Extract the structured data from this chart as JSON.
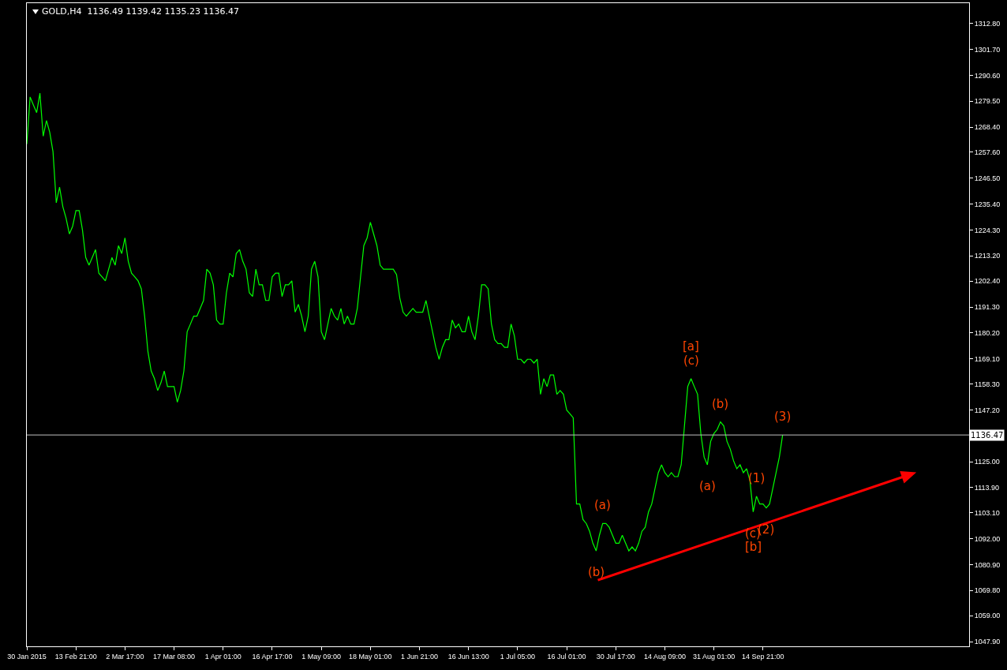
{
  "chart_data": {
    "type": "line",
    "title": "GOLD,H4  1136.49 1139.42 1135.23 1136.47",
    "categories": [
      "30 Jan 2015",
      null,
      null,
      null,
      null,
      null,
      null,
      null,
      null,
      null,
      null,
      null,
      null,
      null,
      null,
      "13 Feb 21:00",
      null,
      null,
      null,
      null,
      null,
      null,
      null,
      null,
      null,
      null,
      null,
      null,
      null,
      null,
      "2 Mar 17:00",
      null,
      null,
      null,
      null,
      null,
      null,
      null,
      null,
      null,
      null,
      null,
      null,
      null,
      null,
      "17 Mar 08:00",
      null,
      null,
      null,
      null,
      null,
      null,
      null,
      null,
      null,
      null,
      null,
      null,
      null,
      null,
      "1 Apr 01:00",
      null,
      null,
      null,
      null,
      null,
      null,
      null,
      null,
      null,
      null,
      null,
      null,
      null,
      null,
      "16 Apr 17:00",
      null,
      null,
      null,
      null,
      null,
      null,
      null,
      null,
      null,
      null,
      null,
      null,
      null,
      null,
      "1 May 09:00",
      null,
      null,
      null,
      null,
      null,
      null,
      null,
      null,
      null,
      null,
      null,
      null,
      null,
      null,
      "18 May 01:00",
      null,
      null,
      null,
      null,
      null,
      null,
      null,
      null,
      null,
      null,
      null,
      null,
      null,
      null,
      "1 Jun 21:00",
      null,
      null,
      null,
      null,
      null,
      null,
      null,
      null,
      null,
      null,
      null,
      null,
      null,
      null,
      "16 Jun 13:00",
      null,
      null,
      null,
      null,
      null,
      null,
      null,
      null,
      null,
      null,
      null,
      null,
      null,
      null,
      "1 Jul 05:00",
      null,
      null,
      null,
      null,
      null,
      null,
      null,
      null,
      null,
      null,
      null,
      null,
      null,
      null,
      "16 Jul 01:00",
      null,
      null,
      null,
      null,
      null,
      null,
      null,
      null,
      null,
      null,
      null,
      null,
      null,
      null,
      "30 Jul 17:00",
      null,
      null,
      null,
      null,
      null,
      null,
      null,
      null,
      null,
      null,
      null,
      null,
      null,
      null,
      "14 Aug 09:00",
      null,
      null,
      null,
      null,
      null,
      null,
      null,
      null,
      null,
      null,
      null,
      null,
      null,
      null,
      "31 Aug 01:00",
      null,
      null,
      null,
      null,
      null,
      null,
      null,
      null,
      null,
      null,
      null,
      null,
      null,
      null,
      "14 Sep 21:00",
      null,
      null,
      null,
      null,
      null,
      null,
      null,
      null,
      null,
      null,
      null,
      null,
      null,
      null,
      null,
      null,
      null,
      null,
      null,
      null,
      null,
      null,
      null,
      null,
      null,
      null,
      null,
      null,
      null,
      null,
      null,
      null,
      null,
      null,
      null,
      null,
      null,
      null,
      null,
      null,
      null,
      null,
      null,
      null,
      null,
      null,
      null,
      null,
      null,
      null,
      null,
      null,
      null,
      null,
      null,
      null,
      null,
      null,
      null,
      null,
      null,
      null,
      null
    ],
    "series": [
      {
        "color": "#00ff00",
        "values": [
          1261.1,
          1281.3,
          1277.9,
          1274.6,
          1282.9,
          1264.5,
          1271.2,
          1266.2,
          1257.8,
          1236.0,
          1242.7,
          1234.3,
          1229.3,
          1222.6,
          1225.9,
          1232.6,
          1232.6,
          1224.3,
          1212.5,
          1209.2,
          1212.5,
          1215.9,
          1205.8,
          1204.2,
          1202.5,
          1207.5,
          1212.5,
          1209.2,
          1217.6,
          1214.2,
          1220.9,
          1210.9,
          1205.8,
          1204.2,
          1202.5,
          1199.1,
          1187.4,
          1172.3,
          1163.9,
          1160.6,
          1155.5,
          1158.9,
          1163.9,
          1157.2,
          1157.2,
          1157.2,
          1150.5,
          1155.5,
          1163.9,
          1180.7,
          1184.0,
          1187.4,
          1187.4,
          1190.7,
          1194.1,
          1207.5,
          1205.8,
          1200.8,
          1185.7,
          1184.0,
          1184.0,
          1197.4,
          1205.8,
          1204.2,
          1214.2,
          1215.9,
          1210.9,
          1207.5,
          1197.4,
          1195.8,
          1207.5,
          1200.8,
          1200.8,
          1194.1,
          1194.1,
          1204.2,
          1205.8,
          1205.8,
          1195.8,
          1200.8,
          1200.8,
          1202.5,
          1189.1,
          1192.4,
          1187.4,
          1180.7,
          1187.4,
          1207.5,
          1210.9,
          1204.2,
          1180.7,
          1177.3,
          1184.0,
          1190.7,
          1187.4,
          1185.7,
          1190.7,
          1184.0,
          1187.4,
          1184.0,
          1184.0,
          1190.7,
          1204.2,
          1217.6,
          1220.9,
          1227.6,
          1222.6,
          1217.6,
          1209.2,
          1207.5,
          1207.5,
          1207.5,
          1207.5,
          1205.2,
          1195.1,
          1189.1,
          1187.4,
          1189.1,
          1190.7,
          1189.1,
          1189.1,
          1189.1,
          1194.1,
          1187.4,
          1180.7,
          1174.0,
          1168.9,
          1174.0,
          1177.3,
          1177.3,
          1185.7,
          1182.4,
          1184.0,
          1180.7,
          1180.7,
          1187.4,
          1180.7,
          1177.3,
          1187.4,
          1200.8,
          1200.8,
          1199.1,
          1184.0,
          1177.3,
          1175.6,
          1175.6,
          1174.0,
          1174.0,
          1184.0,
          1179.0,
          1168.9,
          1168.9,
          1167.3,
          1168.9,
          1168.9,
          1167.3,
          1168.9,
          1153.9,
          1160.6,
          1157.2,
          1162.2,
          1162.2,
          1153.9,
          1155.5,
          1153.9,
          1147.1,
          1145.5,
          1143.8,
          1106.9,
          1106.9,
          1100.2,
          1098.5,
          1095.2,
          1090.1,
          1086.8,
          1093.5,
          1098.5,
          1098.5,
          1096.9,
          1093.5,
          1090.1,
          1090.1,
          1093.5,
          1090.1,
          1086.8,
          1088.5,
          1086.8,
          1090.1,
          1095.2,
          1096.9,
          1103.5,
          1106.9,
          1113.6,
          1120.3,
          1123.7,
          1120.3,
          1118.6,
          1120.3,
          1118.6,
          1118.6,
          1123.7,
          1140.4,
          1157.2,
          1160.6,
          1157.2,
          1153.9,
          1137.1,
          1127.0,
          1123.7,
          1133.7,
          1137.1,
          1138.8,
          1142.1,
          1140.4,
          1133.7,
          1130.4,
          1125.4,
          1122.0,
          1123.7,
          1120.3,
          1122.0,
          1117.0,
          1103.5,
          1110.2,
          1106.9,
          1106.9,
          1105.2,
          1106.9,
          1113.6,
          1120.3,
          1127.0,
          1136.5,
          null,
          null,
          null,
          null,
          null,
          null,
          null,
          null,
          null,
          null,
          null,
          null,
          null,
          null,
          null,
          null,
          null,
          null,
          null,
          null,
          null,
          null,
          null,
          null,
          null,
          null,
          null,
          null,
          null,
          null,
          null,
          null,
          null,
          null,
          null,
          null,
          null,
          null,
          null,
          null,
          null,
          null,
          null,
          null,
          null,
          null,
          null,
          null,
          null,
          null,
          null,
          null,
          null,
          null,
          null,
          null,
          null
        ]
      }
    ],
    "ylim": [
      1045.9,
      1321.5
    ],
    "yticks": [
      {
        "value": 1047.9,
        "label": "1047.90"
      },
      {
        "value": 1059,
        "label": "1059.00"
      },
      {
        "value": 1069.8,
        "label": "1069.80"
      },
      {
        "value": 1080.9,
        "label": "1080.90"
      },
      {
        "value": 1092,
        "label": "1092.00"
      },
      {
        "value": 1103.1,
        "label": "1103.10"
      },
      {
        "value": 1113.9,
        "label": "1113.90"
      },
      {
        "value": 1125,
        "label": "1125.00"
      },
      {
        "value": 1147.2,
        "label": "1147.20"
      },
      {
        "value": 1158.3,
        "label": "1158.30"
      },
      {
        "value": 1169.1,
        "label": "1169.10"
      },
      {
        "value": 1180.2,
        "label": "1180.20"
      },
      {
        "value": 1191.3,
        "label": "1191.30"
      },
      {
        "value": 1202.4,
        "label": "1202.40"
      },
      {
        "value": 1213.2,
        "label": "1213.20"
      },
      {
        "value": 1224.3,
        "label": "1224.30"
      },
      {
        "value": 1235.4,
        "label": "1235.40"
      },
      {
        "value": 1246.5,
        "label": "1246.50"
      },
      {
        "value": 1257.6,
        "label": "1257.60"
      },
      {
        "value": 1268.4,
        "label": "1268.40"
      },
      {
        "value": 1279.5,
        "label": "1279.50"
      },
      {
        "value": 1290.6,
        "label": "1290.60"
      },
      {
        "value": 1301.7,
        "label": "1301.70"
      },
      {
        "value": 1312.8,
        "label": "1312.80"
      }
    ],
    "ref_lines": [
      {
        "axis": "y",
        "value": 1136.47,
        "label": "1136.47",
        "color": "#c0c0c0"
      }
    ],
    "annotations": [
      {
        "text": "(c)",
        "y": 1160.6
      },
      {
        "text": "[a]",
        "y": 1160.6
      },
      {
        "text": "(b)",
        "y": 1142.1
      },
      {
        "text": "(3)",
        "y": 1136.5
      },
      {
        "text": "(a)",
        "y": 1098.5
      },
      {
        "text": "(a)",
        "y": 1123.7
      },
      {
        "text": "(1)",
        "y": 1110.2
      },
      {
        "text": "(2)",
        "y": 1105.2
      },
      {
        "text": "(c)",
        "y": 1103.5
      },
      {
        "text": "[b]",
        "y": 1103.5
      },
      {
        "text": "(b)",
        "y": 1086.8
      }
    ],
    "grid": false,
    "marker": "none",
    "line_style": "solid"
  }
}
